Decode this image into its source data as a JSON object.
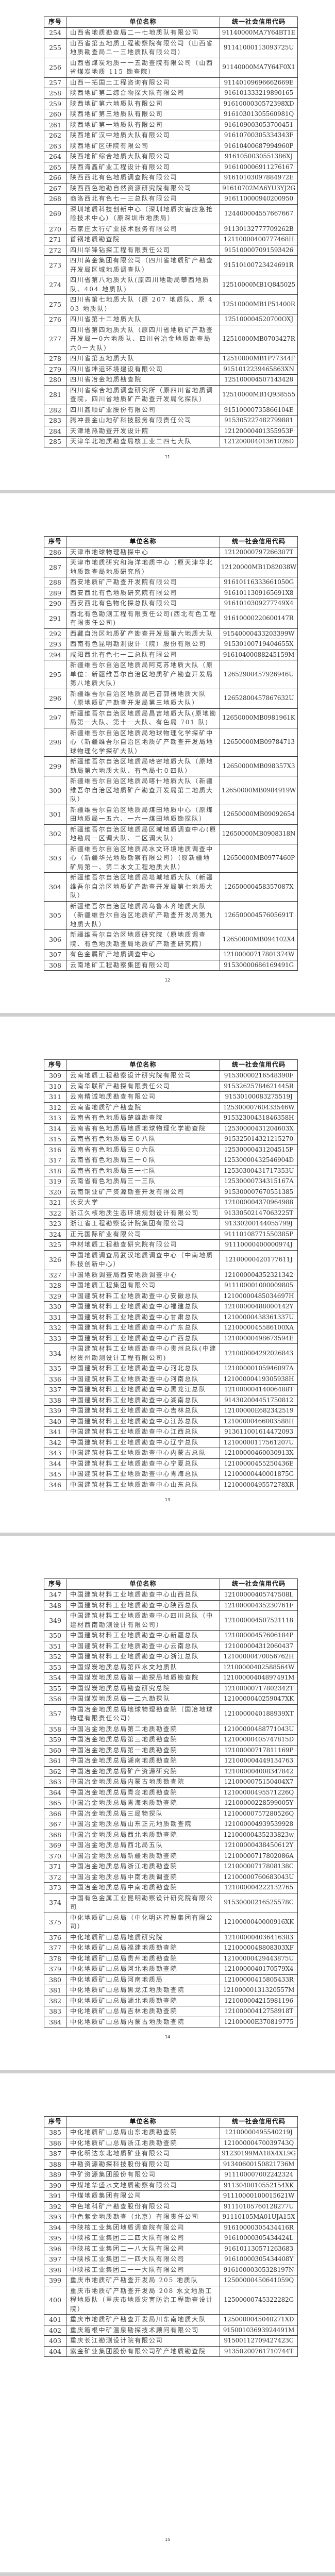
{
  "table_header": {
    "seq": "序号",
    "name": "单位名称",
    "code": "统一社会信用代码"
  },
  "pages": [
    {
      "page_number": "11",
      "rows": [
        [
          "254",
          "山西省地质勘查局二一七地质队有限公司",
          "91140000MA7Y64BT1E"
        ],
        [
          "255",
          "山西省第五地质工程勘察院有限公司（山西省地质勘查局二一三地质队有限公司）",
          "91141000113093725U"
        ],
        [
          "256",
          "山西省煤炭地质一一五勘查院有限公司（山西省煤炭地质 115 勘查院）",
          "91140000MA7Y64F0X1"
        ],
        [
          "257",
          "山西一拓国土工程咨询有限公司",
          "91140109696662669E"
        ],
        [
          "258",
          "陕西地矿第二综合物探大队有限公司",
          "916101333219890165"
        ],
        [
          "259",
          "陕西地矿第六地质队有限公司",
          "9161000030572398XD"
        ],
        [
          "260",
          "陕西地矿第三地质队有限公司",
          "91610301305560981Q"
        ],
        [
          "261",
          "陕西地矿第一地质队有限公司",
          "916109003053700451"
        ],
        [
          "262",
          "陕西地矿汉中地质大队有限公司",
          "91610700305334343F"
        ],
        [
          "263",
          "陕西地矿区研院有限公司",
          "91610400687994960P"
        ],
        [
          "264",
          "陕西地矿综合地质大队有限公司",
          "9161050030551386XJ"
        ],
        [
          "265",
          "陕西海鑫矿业工程设计有限公司",
          "916100006911276167"
        ],
        [
          "266",
          "陕西西北有色地质调查院有限公司",
          "91610103097884972E"
        ],
        [
          "267",
          "陕西西色地勘自然资源研究院有限公司",
          "91610702MA6YU3YJ2G"
        ],
        [
          "268",
          "商洛西北有色七一三总队有限公司",
          "916110000940200950"
        ],
        [
          "269",
          "深圳地质科技创新中心（深圳地质灾害应急抢险技术中心）（原深圳市地质局）",
          "124400004557667667"
        ],
        [
          "270",
          "石家庄太行矿业技术服务有限公司",
          "91130132777709262B"
        ],
        [
          "271",
          "首钢地质勘查院",
          "12110000400777468H"
        ],
        [
          "272",
          "四川华锋钻探工程有限责任公司",
          "915100007091593426"
        ],
        [
          "273",
          "四川黄金集团有限公司（四川省地质矿产勘查开发局区域地质调查队）",
          "91510100723424691R"
        ],
        [
          "274",
          "四川省第八地质大队(原四川地勘局攀西地质队、404 地质队)",
          "12510000MB1Q845025"
        ],
        [
          "275",
          "四川省第七地质大队（原 207 地质队、原 403 地质队）",
          "12510000MB1P51400R"
        ],
        [
          "276",
          "四川省第十二地质大队",
          "125100004520700OXJ"
        ],
        [
          "277",
          "四川省第四地质大队（原四川省地质矿产勘查开发局一0六地质队、四川省冶金地质勘查局六0一大队）",
          "12510000MB0703427R"
        ],
        [
          "278",
          "四川省第五地质大队",
          "12510000MB1P77344F"
        ],
        [
          "279",
          "四川省坤运环境建设有限公司",
          "9151012239465863XN"
        ],
        [
          "280",
          "四川省冶金地质勘查院",
          "125100004507143428"
        ],
        [
          "281",
          "四川省综合地质调查研究所（原四川省地质调查院，四川省地质矿产勘查开发局化探队）",
          "12510000MB1Q938555"
        ],
        [
          "282",
          "四川鑫顺矿业股份有限公司",
          "91510000735866104E"
        ],
        [
          "283",
          "腾冲县金山地矿科技服务有限责任公司",
          "915305227482799881"
        ],
        [
          "284",
          "天津地热勘查开发设计院",
          "12120000401355953F"
        ],
        [
          "285",
          "天津华北地质勘查局核工业二四七大队",
          "12120000401361026D"
        ]
      ]
    },
    {
      "page_number": "12",
      "rows": [
        [
          "286",
          "天津市地球物理勘探中心",
          "12120000797266307T"
        ],
        [
          "287",
          "天津市地质研究和海洋地质中心（原天津华北地质勘查局地质研究所）",
          "12120000MB1D82038W"
        ],
        [
          "288",
          "西安地质矿产勘查开发院有限公司",
          "91610116333661050G"
        ],
        [
          "289",
          "西安西北有色地质研究院有限公司",
          "9161011309165691X8"
        ],
        [
          "290",
          "西安西北有色物化探总队有限公司",
          "9161010309277749X4"
        ],
        [
          "291",
          "西北有色勘测工程有限责任公司(西北有色工程有限责任公司)",
          "91610000220600147R"
        ],
        [
          "292",
          "西藏自治区地质矿产勘查开发局第六地质大队",
          "91540000433203399W"
        ],
        [
          "293",
          "西南有色昆明勘测设计（院）股份有限公司",
          "915301007194046​55X"
        ],
        [
          "294",
          "咸阳西北有色七一二总队有限公司",
          "91610400088245159M"
        ],
        [
          "295",
          "新疆维吾尔自治区地质局阿克苏地质大队（原单位：新疆维吾尔自治区地质矿产勘查开发局第八地质大队）",
          "12652900457926946U"
        ],
        [
          "296",
          "新疆维吾尔自治区地质局巴音郭楞地质大队（原地质矿产勘查开发局第三地质大队）",
          "12652800457867632U"
        ],
        [
          "297",
          "新疆维吾尔自治区地质局昌吉地质大队(原地勘局第一大队、第十一大队、有色局 701 队)",
          "12650000MB0981961K"
        ],
        [
          "298",
          "新疆维吾尔自治区地质局地球物理化学探矿中心（新疆维吾尔自治区地质矿产勘查开发局地球物理化学探矿大队）",
          "12650000MB09784713"
        ],
        [
          "299",
          "新疆维吾尔自治区地质局哈密地质大队（原地勘局第六地质大队、有色局七０四队）",
          "12650000MB098357X3"
        ],
        [
          "300",
          "新疆维吾尔自治区地质局喀什地质大队（新疆维吾尔自治区地质矿产勘查开发局第二地质大队）",
          "12650000MB0984919W"
        ],
        [
          "301",
          "新疆维吾尔自治区地质局煤田地质中心（原煤田地质局一五六、一六一煤田地质勘探队）",
          "12650000MB09092654"
        ],
        [
          "302",
          "新疆维吾尔自治区地质局区域地质调查中心(原地勘局一区调大队、二区调大队)",
          "12650000MB0908318N"
        ],
        [
          "303",
          "新疆维吾尔自治区地质局水文环境地质调查中心（新疆华光地质勘察有限公司）（原新疆地矿局第一、第二水文工程地质大队）",
          "12650000MB0977460P"
        ],
        [
          "304",
          "新疆维吾尔自治区地质局塔城地质大队（新疆维吾尔自治区地质矿产勘查开发局第七地质大队）",
          "12650000458357087X"
        ],
        [
          "305",
          "新疆维吾尔自治区地质局乌鲁木齐地质大队（新疆维吾尔自治区地质矿产勘查开发局第九地质大队）",
          "12650000457605691T"
        ],
        [
          "306",
          "新疆维吾尔自治区地质研究院（原地质调查院、有色地质勘查局地质矿产勘查研究院）",
          "12650000MB094102X4"
        ],
        [
          "307",
          "有色金属矿产地质调查中心",
          "12100000717801374W"
        ],
        [
          "308",
          "云南地矿工程勘察集团有限公司",
          "91530000686169491G"
        ]
      ]
    },
    {
      "page_number": "13",
      "rows": [
        [
          "309",
          "云南地质工程勘察设计研究院有限公司",
          "91530000216548390F"
        ],
        [
          "310",
          "云南华联矿产勘探有限责任公司",
          "91532625784621445R"
        ],
        [
          "311",
          "云南精诚地质勘查有限公司",
          "91530100083275519J"
        ],
        [
          "312",
          "云南省地质矿产勘查院",
          "12530000760433546W"
        ],
        [
          "313",
          "云南省有色地质局楚雄勘查院",
          "91532300431846358H"
        ],
        [
          "314",
          "云南省有色地质局地质地球物理化学勘查院",
          "12530000431204603X"
        ],
        [
          "315",
          "云南省有色地质局三０八队",
          "915325014321215270"
        ],
        [
          "316",
          "云南省有色地质局三０六队",
          "12530000431204515F"
        ],
        [
          "317",
          "云南省有色地质局三一０队",
          "12530000432546904D"
        ],
        [
          "318",
          "云南省有色地质局三一七队",
          "12530300431717353U"
        ],
        [
          "319",
          "云南省有色地质局三一三队",
          "12530000734315167A"
        ],
        [
          "320",
          "云南铜业矿产资源勘查开发有限公司",
          "915300007670551385"
        ],
        [
          "321",
          "长安大学",
          "121000004370964988"
        ],
        [
          "322",
          "浙江久核地质生态环境规划设计有限公司",
          "91330502147063225T"
        ],
        [
          "323",
          "浙江省工程勘察设计院集团有限公司",
          "91330200144055799J"
        ],
        [
          "324",
          "正元国际矿业有限公司",
          "91110108771550385P"
        ],
        [
          "325",
          "中材地质工程勘查研究院有限公司",
          "91110000400000974J"
        ],
        [
          "326",
          "中国地质调查局武汉地质调查中心（中南地质科技创新中心）",
          "12100000420177611J"
        ],
        [
          "327",
          "中国地质调查局西安地质调查中心",
          "121000004352321342"
        ],
        [
          "328",
          "中国地质工程集团有限公司",
          "911100001000009805"
        ],
        [
          "329",
          "中国建筑材料工业地质勘查中心安徽总队",
          "12100000485034697H"
        ],
        [
          "330",
          "中国建筑材料工业地质勘查中心福建总队",
          "12100000488000142Y"
        ],
        [
          "331",
          "中国建筑材料工业地质勘查中心甘肃总队",
          "12100000438361337U"
        ],
        [
          "332",
          "中国建筑材料工业地质勘查中心广东总队",
          "1210000045586100XA"
        ],
        [
          "333",
          "中国建筑材料工业地质勘查中心广西总队",
          "12100000498673594E"
        ],
        [
          "334",
          "中国建筑材料工业地质勘查中心贵州总队(中建材贵州勘测设计工程有限公司)",
          "121000004292026843"
        ],
        [
          "335",
          "中国建筑材料工业地质勘查中心河北总队",
          "12100000105946097A"
        ],
        [
          "336",
          "中国建筑材料工业地质勘查中心河南总队",
          "12100000419305938H"
        ],
        [
          "337",
          "中国建筑材料工业地质勘查中心黑龙江总队",
          "12100000414006488T"
        ],
        [
          "338",
          "中国建筑材料工业地质勘查中心湖南总队",
          "914302004451750812"
        ],
        [
          "339",
          "中国建筑材料工业地质勘查中心吉林总队",
          "12100000E682342519"
        ],
        [
          "340",
          "中国建筑材料工业地质勘查中心江苏总队",
          "12100000466003588H"
        ],
        [
          "341",
          "中国建筑材料工业地质勘查中心江西总队",
          "913611001614472093"
        ],
        [
          "342",
          "中国建筑材料工业地质勘查中心辽宁总队",
          "12100000117561207U"
        ],
        [
          "343",
          "中国建筑材料工业地质勘查中心内蒙古总队",
          "12100000460030913X"
        ],
        [
          "344",
          "中国建筑材料工业地质勘查中心宁夏总队",
          "12100000455250436E"
        ],
        [
          "345",
          "中国建筑材料工业地质勘查中心青海总队",
          "12100000440001875G"
        ],
        [
          "346",
          "中国建筑材料工业地质勘查中心山东总队",
          "1210000049557278XR"
        ]
      ]
    },
    {
      "page_number": "14",
      "rows": [
        [
          "347",
          "中国建筑材料工业地质勘查中心山西总队",
          "12100000405747508L"
        ],
        [
          "348",
          "中国建筑材料工业地质勘查中心陕西总队",
          "12100000435230761F"
        ],
        [
          "349",
          "中国建筑材料工业地质勘查中心四川总队（中建材西南勘测设计有限公司）",
          "121000004507521118"
        ],
        [
          "350",
          "中国建筑材料工业地质勘查中心新疆总队",
          "12100000457606184P"
        ],
        [
          "351",
          "中国建筑材料工业地质勘查中心云南总队",
          "121000004312060437"
        ],
        [
          "352",
          "中国建筑材料工业地质勘查中心浙江总队",
          "12100000470056762H"
        ],
        [
          "353",
          "中国煤炭地质总局第四水文地质队",
          "12100000402588564W"
        ],
        [
          "354",
          "中国煤炭地质总局第一勘探局地质勘查院",
          "12100000404897491M"
        ],
        [
          "355",
          "中国煤炭地质总局勘查研究总院",
          "12100000717802342T"
        ],
        [
          "356",
          "中国煤炭地质总局一二九勘探队",
          "1210000040259047XK"
        ],
        [
          "357",
          "中国冶金地质总局地球物理勘查院（国冶地球物理有限责任公司）",
          "1210000040188939XT"
        ],
        [
          "358",
          "中国冶金地质总局第二地质勘查院",
          "12100000488771043U"
        ],
        [
          "359",
          "中国冶金地质总局第三地质勘查院",
          "12100000405747815D"
        ],
        [
          "360",
          "中国冶金地质总局第一地质勘查院",
          "12100000717811169P"
        ],
        [
          "361",
          "中国冶金地质总局湖南地质勘查院",
          "121000004449134763"
        ],
        [
          "362",
          "中国冶金地质总局矿产资源研究院",
          "121000004008347842"
        ],
        [
          "363",
          "中国冶金地质总局内蒙古地质勘查院",
          "1210000075150404X7"
        ],
        [
          "364",
          "中国冶金地质总局青岛地质勘查院",
          "12100000495571226Q"
        ],
        [
          "365",
          "中国冶金地质总局青海地质勘查院",
          "12100000228599005Y"
        ],
        [
          "366",
          "中国冶金地质总局三局物探队",
          "12100000757280526Q"
        ],
        [
          "367",
          "中国冶金地质总局山东正元地质勘查院",
          "121000004939539928"
        ],
        [
          "368",
          "中国冶金地质总局西北地质勘查院",
          "12100000435233823w"
        ],
        [
          "369",
          "中国冶金地质总局西北局五队",
          "12100000438450612Y"
        ],
        [
          "370",
          "中国冶金地质总局新疆地质勘查院",
          "12100000717802086A"
        ],
        [
          "371",
          "中国冶金地质总局浙江地质勘查院",
          "12100000717808138C"
        ],
        [
          "372",
          "中国冶金地质总局中南地质调查院",
          "12100000760683043U"
        ],
        [
          "373",
          "中国冶金地质总局中南地质勘查院",
          "121000004222132765"
        ],
        [
          "374",
          "中国有色金属工业昆明勘察设计研究院有限公司",
          "91530000216525578C"
        ],
        [
          "375",
          "中化地质矿山总局（中化明达控股集团有限公司）",
          "1210000040000916XK"
        ],
        [
          "376",
          "中化地质矿山总局地质研究院",
          "121000004036416383"
        ],
        [
          "377",
          "中化地质矿山总局福建地质勘查院",
          "1210000048808303XF"
        ],
        [
          "378",
          "中化地质矿山总局贵州地质勘查院",
          "12100000429443875U"
        ],
        [
          "379",
          "中化地质矿山总局河北地质勘查院",
          "1210000040170579X4"
        ],
        [
          "380",
          "中化地质矿山总局河南地质局",
          "12100000415805433R"
        ],
        [
          "381",
          "中化地质矿山总局黑龙江地质勘查院",
          "12100000131320557M"
        ],
        [
          "382",
          "中化地质矿山总局湖北地质勘查院",
          "121000004215981196"
        ],
        [
          "383",
          "中化地质矿山总局吉林地质勘查院",
          "12100000412758918T"
        ],
        [
          "384",
          "中化地质矿山总局内蒙古地质勘查院",
          "12100000E370819775"
        ]
      ]
    },
    {
      "page_number": "15",
      "rows": [
        [
          "385",
          "中化地质矿山总局山东地质勘查院",
          "12100000495540219J"
        ],
        [
          "386",
          "中化地质矿山总局浙江地质勘查院",
          "12100000470039743Q"
        ],
        [
          "387",
          "中化明达东北地质矿业有限公司",
          "91230199MA18X4XL9G"
        ],
        [
          "388",
          "中勘资源勘探科技股份有限公司",
          "91340600150821736M"
        ],
        [
          "389",
          "中矿资源集团股份有限公司",
          "911100007002242324"
        ],
        [
          "390",
          "中煤地华盛水文地质勘察有限公司",
          "9113040010552154XK"
        ],
        [
          "391",
          "中煤地质集团有限公司",
          "91110000100015621W"
        ],
        [
          "392",
          "中色地科矿产勘查股份有限公司",
          "91110105760128277U"
        ],
        [
          "393",
          "中色紫金地质勘查（北京）有限责任公司",
          "91110105MA01UJA15X"
        ],
        [
          "394",
          "中陕核工业集团地质调查院有限公司",
          "91610000305434416R"
        ],
        [
          "395",
          "中陕核工业集团二二四大队有限公司",
          "91610000305434424L"
        ],
        [
          "396",
          "中陕核工业集团二一八大队有限公司",
          "916101130571263683"
        ],
        [
          "397",
          "中陕核工业集团二一四大队有限公司",
          "91610000305434408Y"
        ],
        [
          "398",
          "中陕核工业集团二一一大队有限公司",
          "91610000305328197N"
        ],
        [
          "399",
          "重庆市地质矿产勘查开发局 205 地质队",
          "12500000450641059Q"
        ],
        [
          "400",
          "重庆市地质矿产勘查开发局 208 水文地质工程地质队（重庆市地质灾害防治工程勘查设计院）",
          "12500000745322282G"
        ],
        [
          "401",
          "重庆市地质矿产勘查开发局川东南地质大队",
          "1250000045040271XD"
        ],
        [
          "402",
          "重庆箱根中矿温泉勘探技术顾问有限公司",
          "91500103693924491M"
        ],
        [
          "403",
          "重庆长江勘测设计院有限公司",
          "91500112709427423C"
        ],
        [
          "404",
          "紫金矿业集团股份有限公司矿产地质勘查院",
          "91350200761710744T"
        ]
      ]
    }
  ]
}
